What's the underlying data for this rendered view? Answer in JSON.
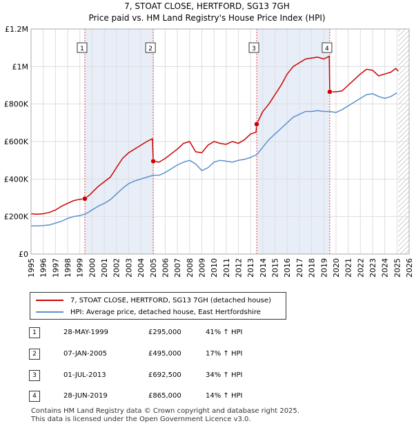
{
  "header": {
    "title": "7, STOAT CLOSE, HERTFORD, SG13 7GH",
    "subtitle": "Price paid vs. HM Land Registry's House Price Index (HPI)"
  },
  "chart_data": {
    "type": "line",
    "title": "Price paid vs. HM Land Registry's House Price Index (HPI)",
    "xlabel": "",
    "ylabel": "",
    "xlim": [
      1995,
      2026
    ],
    "ylim": [
      0,
      1200000
    ],
    "y_ticks": [
      0,
      200000,
      400000,
      600000,
      800000,
      1000000,
      1200000
    ],
    "y_tick_labels": [
      "£0",
      "£200K",
      "£400K",
      "£600K",
      "£800K",
      "£1M",
      "£1.2M"
    ],
    "x_ticks": [
      1995,
      1996,
      1997,
      1998,
      1999,
      2000,
      2001,
      2002,
      2003,
      2004,
      2005,
      2006,
      2007,
      2008,
      2009,
      2010,
      2011,
      2012,
      2013,
      2014,
      2015,
      2016,
      2017,
      2018,
      2019,
      2020,
      2021,
      2022,
      2023,
      2024,
      2025,
      2026
    ],
    "grid": true,
    "shaded_periods": [
      [
        1999.41,
        2005.02
      ],
      [
        2013.5,
        2019.49
      ]
    ],
    "projection_start": 2025.1,
    "series": [
      {
        "name": "7, STOAT CLOSE, HERTFORD, SG13 7GH (detached house)",
        "color": "#cc0000",
        "x": [
          1995,
          1995.5,
          1996,
          1996.5,
          1997,
          1997.5,
          1998,
          1998.5,
          1999,
          1999.41,
          1999.8,
          2000.5,
          2001,
          2001.5,
          2002,
          2002.5,
          2003,
          2003.5,
          2004,
          2004.5,
          2004.95,
          2005.02,
          2005.5,
          2006,
          2006.5,
          2007,
          2007.5,
          2008,
          2008.5,
          2009,
          2009.5,
          2010,
          2010.5,
          2011,
          2011.5,
          2012,
          2012.5,
          2013,
          2013.45,
          2013.5,
          2014,
          2014.5,
          2015,
          2015.5,
          2016,
          2016.5,
          2017,
          2017.5,
          2018,
          2018.5,
          2019,
          2019.45,
          2019.49,
          2020,
          2020.5,
          2021,
          2021.5,
          2022,
          2022.5,
          2023,
          2023.5,
          2024,
          2024.5,
          2024.9,
          2025.1
        ],
        "values": [
          215000,
          212000,
          215000,
          222000,
          235000,
          255000,
          270000,
          285000,
          292000,
          295000,
          315000,
          360000,
          385000,
          410000,
          460000,
          510000,
          540000,
          560000,
          580000,
          600000,
          615000,
          495000,
          490000,
          510000,
          535000,
          560000,
          590000,
          600000,
          545000,
          540000,
          580000,
          600000,
          590000,
          585000,
          600000,
          590000,
          610000,
          640000,
          650000,
          692500,
          760000,
          800000,
          850000,
          900000,
          960000,
          1000000,
          1020000,
          1040000,
          1045000,
          1050000,
          1040000,
          1055000,
          865000,
          865000,
          870000,
          900000,
          930000,
          960000,
          985000,
          980000,
          950000,
          960000,
          970000,
          990000,
          975000
        ]
      },
      {
        "name": "HPI: Average price, detached house, East Hertfordshire",
        "color": "#5b8fcf",
        "x": [
          1995,
          1995.5,
          1996,
          1996.5,
          1997,
          1997.5,
          1998,
          1998.5,
          1999,
          1999.5,
          2000,
          2000.5,
          2001,
          2001.5,
          2002,
          2002.5,
          2003,
          2003.5,
          2004,
          2004.5,
          2005,
          2005.5,
          2006,
          2006.5,
          2007,
          2007.5,
          2008,
          2008.5,
          2009,
          2009.5,
          2010,
          2010.5,
          2011,
          2011.5,
          2012,
          2012.5,
          2013,
          2013.5,
          2014,
          2014.5,
          2015,
          2015.5,
          2016,
          2016.5,
          2017,
          2017.5,
          2018,
          2018.5,
          2019,
          2019.5,
          2020,
          2020.5,
          2021,
          2021.5,
          2022,
          2022.5,
          2023,
          2023.5,
          2024,
          2024.5,
          2025
        ],
        "values": [
          150000,
          150000,
          152000,
          155000,
          165000,
          175000,
          190000,
          200000,
          205000,
          215000,
          235000,
          255000,
          270000,
          290000,
          320000,
          350000,
          375000,
          390000,
          400000,
          410000,
          420000,
          420000,
          435000,
          455000,
          475000,
          490000,
          500000,
          480000,
          445000,
          460000,
          490000,
          500000,
          495000,
          490000,
          500000,
          505000,
          515000,
          530000,
          570000,
          610000,
          640000,
          670000,
          700000,
          730000,
          745000,
          760000,
          760000,
          765000,
          760000,
          760000,
          755000,
          770000,
          790000,
          810000,
          830000,
          850000,
          855000,
          840000,
          830000,
          840000,
          860000
        ]
      }
    ],
    "sales": [
      {
        "label": "1",
        "x": 1999.41,
        "value": 295000
      },
      {
        "label": "2",
        "x": 2005.02,
        "value": 495000
      },
      {
        "label": "3",
        "x": 2013.5,
        "value": 692500
      },
      {
        "label": "4",
        "x": 2019.49,
        "value": 865000
      }
    ],
    "legend_position": "bottom-left"
  },
  "legend": {
    "property_label": "7, STOAT CLOSE, HERTFORD, SG13 7GH (detached house)",
    "hpi_label": "HPI: Average price, detached house, East Hertfordshire",
    "property_color": "#cc0000",
    "hpi_color": "#5b8fcf"
  },
  "transactions": [
    {
      "num": "1",
      "date": "28-MAY-1999",
      "price": "£295,000",
      "hpi": "41% ↑ HPI"
    },
    {
      "num": "2",
      "date": "07-JAN-2005",
      "price": "£495,000",
      "hpi": "17% ↑ HPI"
    },
    {
      "num": "3",
      "date": "01-JUL-2013",
      "price": "£692,500",
      "hpi": "34% ↑ HPI"
    },
    {
      "num": "4",
      "date": "28-JUN-2019",
      "price": "£865,000",
      "hpi": "14% ↑ HPI"
    }
  ],
  "footer": {
    "line1": "Contains HM Land Registry data © Crown copyright and database right 2025.",
    "line2": "This data is licensed under the Open Government Licence v3.0."
  }
}
